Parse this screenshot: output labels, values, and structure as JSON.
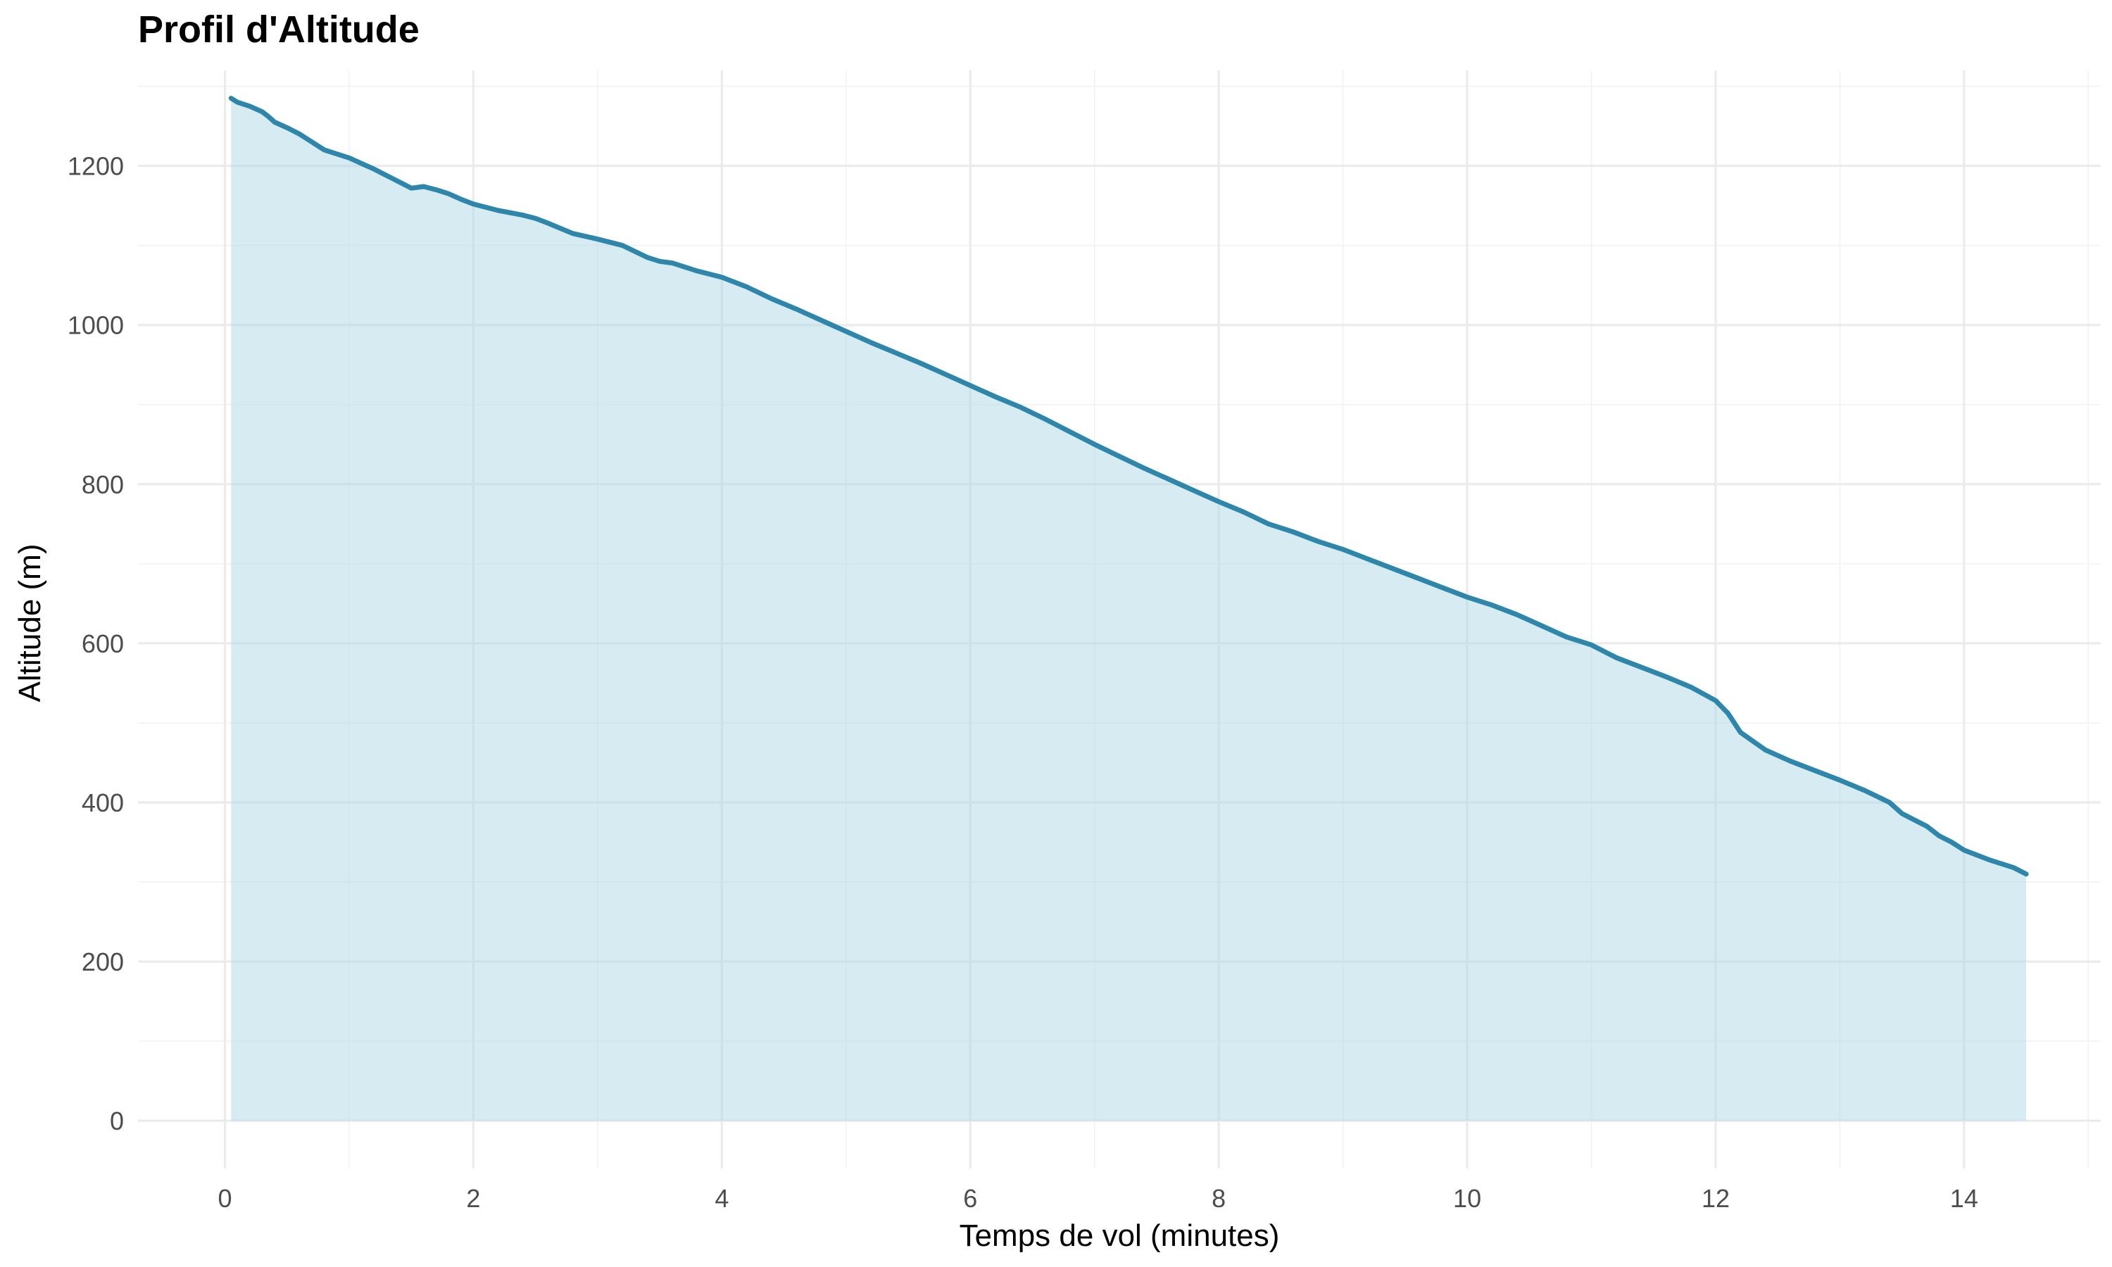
{
  "colors": {
    "line": "#2e86ab",
    "fill": "#add8e6",
    "fill_opacity": 0.5,
    "grid_major": "#ebebeb",
    "grid_minor": "#f2f2f2",
    "tick_text": "#4d4d4d"
  },
  "chart_data": {
    "type": "area",
    "title": "Profil d'Altitude",
    "xlabel": "Temps de vol (minutes)",
    "ylabel": "Altitude (m)",
    "xlim": [
      -0.7,
      15.1
    ],
    "ylim": [
      -60,
      1320
    ],
    "xticks": [
      0,
      2,
      4,
      6,
      8,
      10,
      12,
      14
    ],
    "xticks_minor": [
      1,
      3,
      5,
      7,
      9,
      11,
      13,
      15
    ],
    "yticks": [
      0,
      200,
      400,
      600,
      800,
      1000,
      1200
    ],
    "yticks_minor": [
      100,
      300,
      500,
      700,
      900,
      1100,
      1300
    ],
    "grid": true,
    "legend": "none",
    "series": [
      {
        "x": [
          0.05,
          0.1,
          0.2,
          0.3,
          0.35,
          0.4,
          0.5,
          0.6,
          0.7,
          0.8,
          0.9,
          1.0,
          1.1,
          1.2,
          1.3,
          1.4,
          1.5,
          1.6,
          1.7,
          1.8,
          1.9,
          2.0,
          2.2,
          2.4,
          2.5,
          2.6,
          2.8,
          3.0,
          3.2,
          3.4,
          3.5,
          3.6,
          3.8,
          4.0,
          4.2,
          4.4,
          4.6,
          4.8,
          5.0,
          5.2,
          5.4,
          5.6,
          5.8,
          6.0,
          6.2,
          6.4,
          6.6,
          6.8,
          7.0,
          7.2,
          7.4,
          7.6,
          7.8,
          8.0,
          8.2,
          8.4,
          8.6,
          8.8,
          9.0,
          9.2,
          9.4,
          9.6,
          9.8,
          10.0,
          10.2,
          10.4,
          10.6,
          10.8,
          11.0,
          11.2,
          11.4,
          11.6,
          11.8,
          12.0,
          12.1,
          12.2,
          12.4,
          12.6,
          12.8,
          13.0,
          13.2,
          13.4,
          13.5,
          13.6,
          13.7,
          13.8,
          13.9,
          14.0,
          14.2,
          14.4,
          14.5
        ],
        "y": [
          1285,
          1280,
          1275,
          1268,
          1262,
          1255,
          1248,
          1240,
          1230,
          1220,
          1215,
          1210,
          1203,
          1196,
          1188,
          1180,
          1172,
          1174,
          1170,
          1165,
          1158,
          1152,
          1144,
          1138,
          1134,
          1128,
          1115,
          1108,
          1100,
          1085,
          1080,
          1078,
          1068,
          1060,
          1048,
          1033,
          1020,
          1006,
          992,
          978,
          965,
          952,
          938,
          924,
          910,
          897,
          882,
          866,
          850,
          835,
          820,
          806,
          792,
          778,
          765,
          750,
          740,
          728,
          718,
          706,
          694,
          682,
          670,
          658,
          648,
          636,
          622,
          608,
          598,
          582,
          570,
          558,
          545,
          528,
          512,
          488,
          466,
          452,
          440,
          428,
          415,
          400,
          386,
          378,
          370,
          358,
          350,
          340,
          328,
          318,
          310
        ]
      }
    ]
  }
}
